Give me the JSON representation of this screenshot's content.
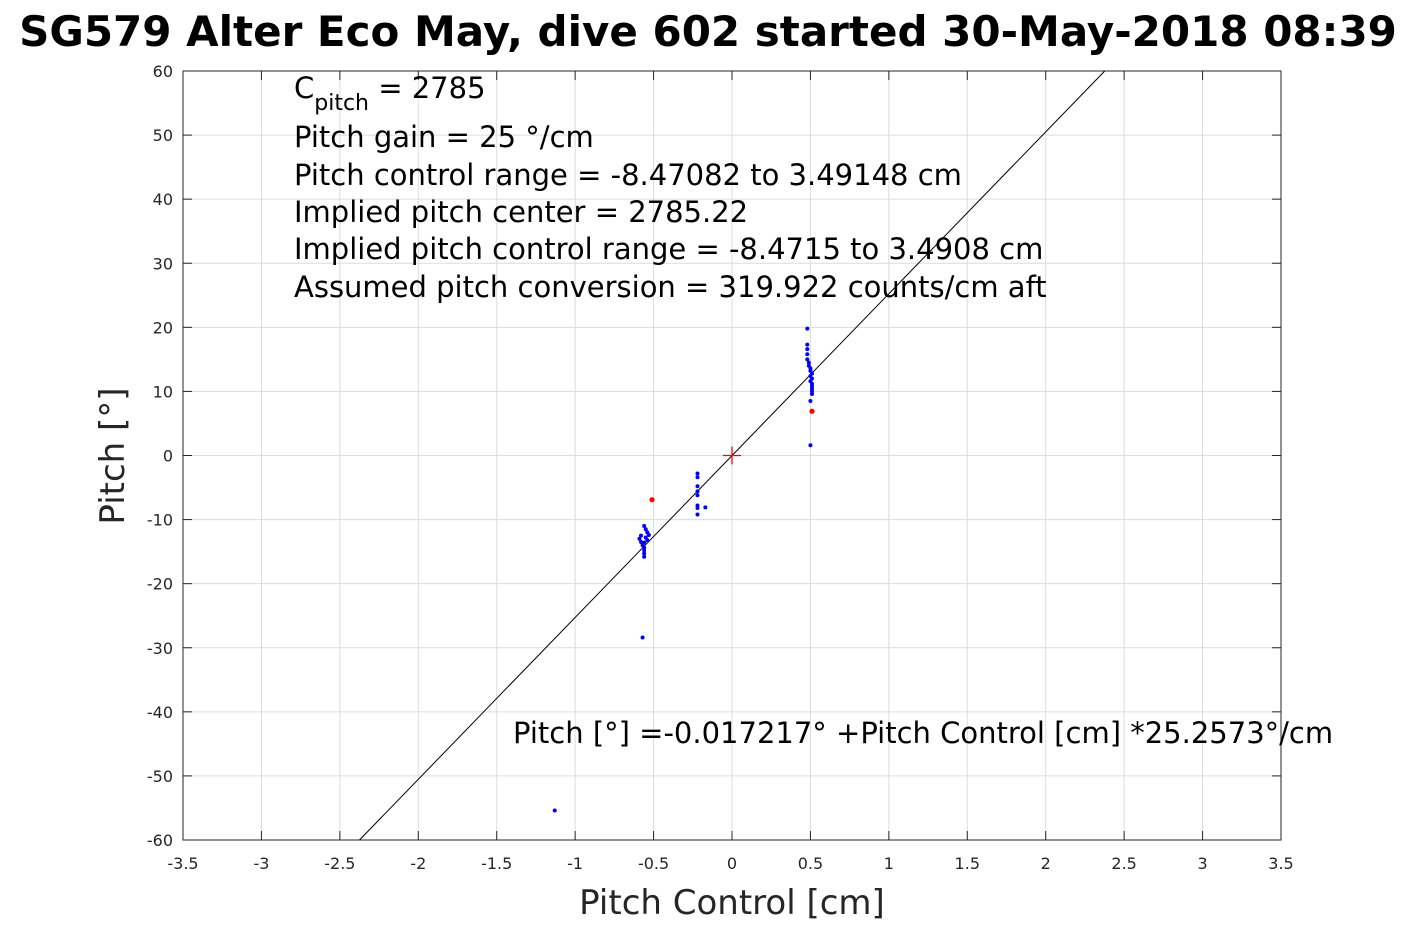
{
  "chart_data": {
    "type": "scatter",
    "title": "SG579 Alter Eco May, dive 602 started 30-May-2018 08:39",
    "xlabel": "Pitch Control [cm]",
    "ylabel": "Pitch [°]",
    "xlim": [
      -3.5,
      3.5
    ],
    "ylim": [
      -60,
      60
    ],
    "xticks": [
      -3.5,
      -3,
      -2.5,
      -2,
      -1.5,
      -1,
      -0.5,
      0,
      0.5,
      1,
      1.5,
      2,
      2.5,
      3,
      3.5
    ],
    "yticks": [
      -60,
      -50,
      -40,
      -30,
      -20,
      -10,
      0,
      10,
      20,
      30,
      40,
      50,
      60
    ],
    "xtick_labels": [
      "-3.5",
      "-3",
      "-2.5",
      "-2",
      "-1.5",
      "-1",
      "-0.5",
      "0",
      "0.5",
      "1",
      "1.5",
      "2",
      "2.5",
      "3",
      "3.5"
    ],
    "ytick_labels": [
      "-60",
      "-50",
      "-40",
      "-30",
      "-20",
      "-10",
      "0",
      "10",
      "20",
      "30",
      "40",
      "50",
      "60"
    ],
    "grid": true,
    "colors": {
      "data": "#0000ff",
      "flagged": "#ff0000",
      "fit": "#000000",
      "center": "#ff0000",
      "grid": "#dcdcdc"
    },
    "fit_line": {
      "intercept": -0.017217,
      "slope": 25.2573
    },
    "center_marker": {
      "x": 0,
      "y": 0
    },
    "series": [
      {
        "color": "#0000ff",
        "points": [
          [
            0.48,
            19.8
          ],
          [
            0.48,
            17.3
          ],
          [
            0.48,
            16.6
          ],
          [
            0.48,
            15.8
          ],
          [
            0.48,
            15.0
          ],
          [
            0.49,
            14.5
          ],
          [
            0.49,
            14.0
          ],
          [
            0.5,
            13.6
          ],
          [
            0.5,
            13.2
          ],
          [
            0.51,
            12.8
          ],
          [
            0.5,
            12.4
          ],
          [
            0.51,
            12.0
          ],
          [
            0.5,
            11.6
          ],
          [
            0.51,
            11.2
          ],
          [
            0.51,
            10.8
          ],
          [
            0.51,
            10.4
          ],
          [
            0.51,
            10.0
          ],
          [
            0.51,
            9.6
          ],
          [
            0.5,
            8.5
          ],
          [
            0.5,
            1.6
          ],
          [
            -0.58,
            -12.5
          ],
          [
            -0.59,
            -13.0
          ],
          [
            -0.56,
            -11.0
          ],
          [
            -0.55,
            -11.5
          ],
          [
            -0.54,
            -12.0
          ],
          [
            -0.53,
            -12.4
          ],
          [
            -0.55,
            -12.8
          ],
          [
            -0.54,
            -13.2
          ],
          [
            -0.56,
            -13.6
          ],
          [
            -0.57,
            -14.0
          ],
          [
            -0.56,
            -14.4
          ],
          [
            -0.56,
            -14.8
          ],
          [
            -0.56,
            -15.3
          ],
          [
            -0.56,
            -15.8
          ],
          [
            -0.58,
            -13.5
          ],
          [
            -0.57,
            -28.4
          ],
          [
            -0.22,
            -2.8
          ],
          [
            -0.22,
            -3.4
          ],
          [
            -0.22,
            -4.8
          ],
          [
            -0.22,
            -5.6
          ],
          [
            -0.22,
            -6.2
          ],
          [
            -0.22,
            -7.8
          ],
          [
            -0.22,
            -8.2
          ],
          [
            -0.22,
            -9.2
          ],
          [
            -0.17,
            -8.1
          ],
          [
            -1.13,
            -55.4
          ]
        ]
      },
      {
        "color": "#ff0000",
        "points": [
          [
            -0.51,
            -6.9
          ],
          [
            0.51,
            6.9
          ]
        ]
      }
    ],
    "annotations": {
      "cpitch_main": "C",
      "cpitch_sub": "pitch",
      "cpitch_value": " = 2785",
      "lines": [
        "Pitch gain = 25 °/cm",
        "Pitch control range = -8.47082 to 3.49148 cm",
        "Implied pitch center = 2785.22",
        "Implied pitch control range = -8.4715 to 3.4908 cm",
        "Assumed pitch conversion = 319.922 counts/cm aft"
      ],
      "fit_equation": "Pitch [°] =-0.017217° +Pitch Control [cm] *25.2573°/cm"
    }
  }
}
